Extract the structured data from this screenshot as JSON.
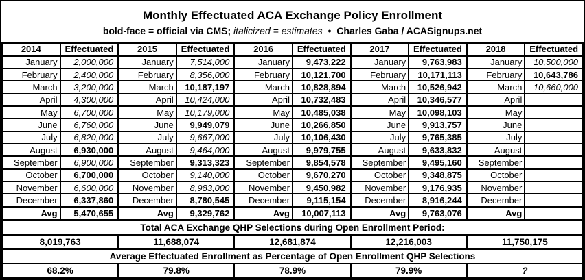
{
  "header": {
    "title": "Monthly Effectuated ACA Exchange Policy Enrollment",
    "legend_bold": "bold-face = official via CMS;",
    "legend_italic": "italicized = estimates",
    "bullet": "•",
    "credit": "Charles Gaba / ACASignups.net"
  },
  "chart_data": {
    "type": "table",
    "title": "Monthly Effectuated ACA Exchange Policy Enrollment",
    "effectuated_label": "Effectuated",
    "avg_label": "Avg",
    "totals_header": "Total ACA Exchange QHP Selections during Open Enrollment Period:",
    "pct_header": "Average Effectuated Enrollment as Percentage of Open Enrollment QHP Selections",
    "months": [
      "January",
      "February",
      "March",
      "April",
      "May",
      "June",
      "July",
      "August",
      "September",
      "October",
      "November",
      "December"
    ],
    "years": [
      {
        "year": "2014",
        "monthly": [
          {
            "value": "2,000,000",
            "official": false
          },
          {
            "value": "2,400,000",
            "official": false
          },
          {
            "value": "3,200,000",
            "official": false
          },
          {
            "value": "4,300,000",
            "official": false
          },
          {
            "value": "6,700,000",
            "official": false
          },
          {
            "value": "6,760,000",
            "official": false
          },
          {
            "value": "6,820,000",
            "official": false
          },
          {
            "value": "6,930,000",
            "official": true
          },
          {
            "value": "6,900,000",
            "official": false
          },
          {
            "value": "6,700,000",
            "official": true
          },
          {
            "value": "6,600,000",
            "official": false
          },
          {
            "value": "6,337,860",
            "official": true
          }
        ],
        "avg": "5,470,655",
        "oe_total": "8,019,763",
        "pct": "68.2%",
        "pct_estimate": false
      },
      {
        "year": "2015",
        "monthly": [
          {
            "value": "7,514,000",
            "official": false
          },
          {
            "value": "8,356,000",
            "official": false
          },
          {
            "value": "10,187,197",
            "official": true
          },
          {
            "value": "10,424,000",
            "official": false
          },
          {
            "value": "10,179,000",
            "official": false
          },
          {
            "value": "9,949,079",
            "official": true
          },
          {
            "value": "9,667,000",
            "official": false
          },
          {
            "value": "9,464,000",
            "official": false
          },
          {
            "value": "9,313,323",
            "official": true
          },
          {
            "value": "9,140,000",
            "official": false
          },
          {
            "value": "8,983,000",
            "official": false
          },
          {
            "value": "8,780,545",
            "official": true
          }
        ],
        "avg": "9,329,762",
        "oe_total": "11,688,074",
        "pct": "79.8%",
        "pct_estimate": false
      },
      {
        "year": "2016",
        "monthly": [
          {
            "value": "9,473,222",
            "official": true
          },
          {
            "value": "10,121,700",
            "official": true
          },
          {
            "value": "10,828,894",
            "official": true
          },
          {
            "value": "10,732,483",
            "official": true
          },
          {
            "value": "10,485,038",
            "official": true
          },
          {
            "value": "10,266,850",
            "official": true
          },
          {
            "value": "10,106,430",
            "official": true
          },
          {
            "value": "9,979,755",
            "official": true
          },
          {
            "value": "9,854,578",
            "official": true
          },
          {
            "value": "9,670,270",
            "official": true
          },
          {
            "value": "9,450,982",
            "official": true
          },
          {
            "value": "9,115,154",
            "official": true
          }
        ],
        "avg": "10,007,113",
        "oe_total": "12,681,874",
        "pct": "78.9%",
        "pct_estimate": false
      },
      {
        "year": "2017",
        "monthly": [
          {
            "value": "9,763,983",
            "official": true
          },
          {
            "value": "10,171,113",
            "official": true
          },
          {
            "value": "10,526,942",
            "official": true
          },
          {
            "value": "10,346,577",
            "official": true
          },
          {
            "value": "10,098,103",
            "official": true
          },
          {
            "value": "9,913,757",
            "official": true
          },
          {
            "value": "9,765,385",
            "official": true
          },
          {
            "value": "9,633,832",
            "official": true
          },
          {
            "value": "9,495,160",
            "official": true
          },
          {
            "value": "9,348,875",
            "official": true
          },
          {
            "value": "9,176,935",
            "official": true
          },
          {
            "value": "8,916,244",
            "official": true
          }
        ],
        "avg": "9,763,076",
        "oe_total": "12,216,003",
        "pct": "79.9%",
        "pct_estimate": false
      },
      {
        "year": "2018",
        "monthly": [
          {
            "value": "10,500,000",
            "official": false
          },
          {
            "value": "10,643,786",
            "official": true
          },
          {
            "value": "10,660,000",
            "official": false
          },
          {
            "value": "",
            "official": false
          },
          {
            "value": "",
            "official": false
          },
          {
            "value": "",
            "official": false
          },
          {
            "value": "",
            "official": false
          },
          {
            "value": "",
            "official": false
          },
          {
            "value": "",
            "official": false
          },
          {
            "value": "",
            "official": false
          },
          {
            "value": "",
            "official": false
          },
          {
            "value": "",
            "official": false
          }
        ],
        "avg": "",
        "oe_total": "11,750,175",
        "pct": "?",
        "pct_estimate": true
      }
    ]
  }
}
